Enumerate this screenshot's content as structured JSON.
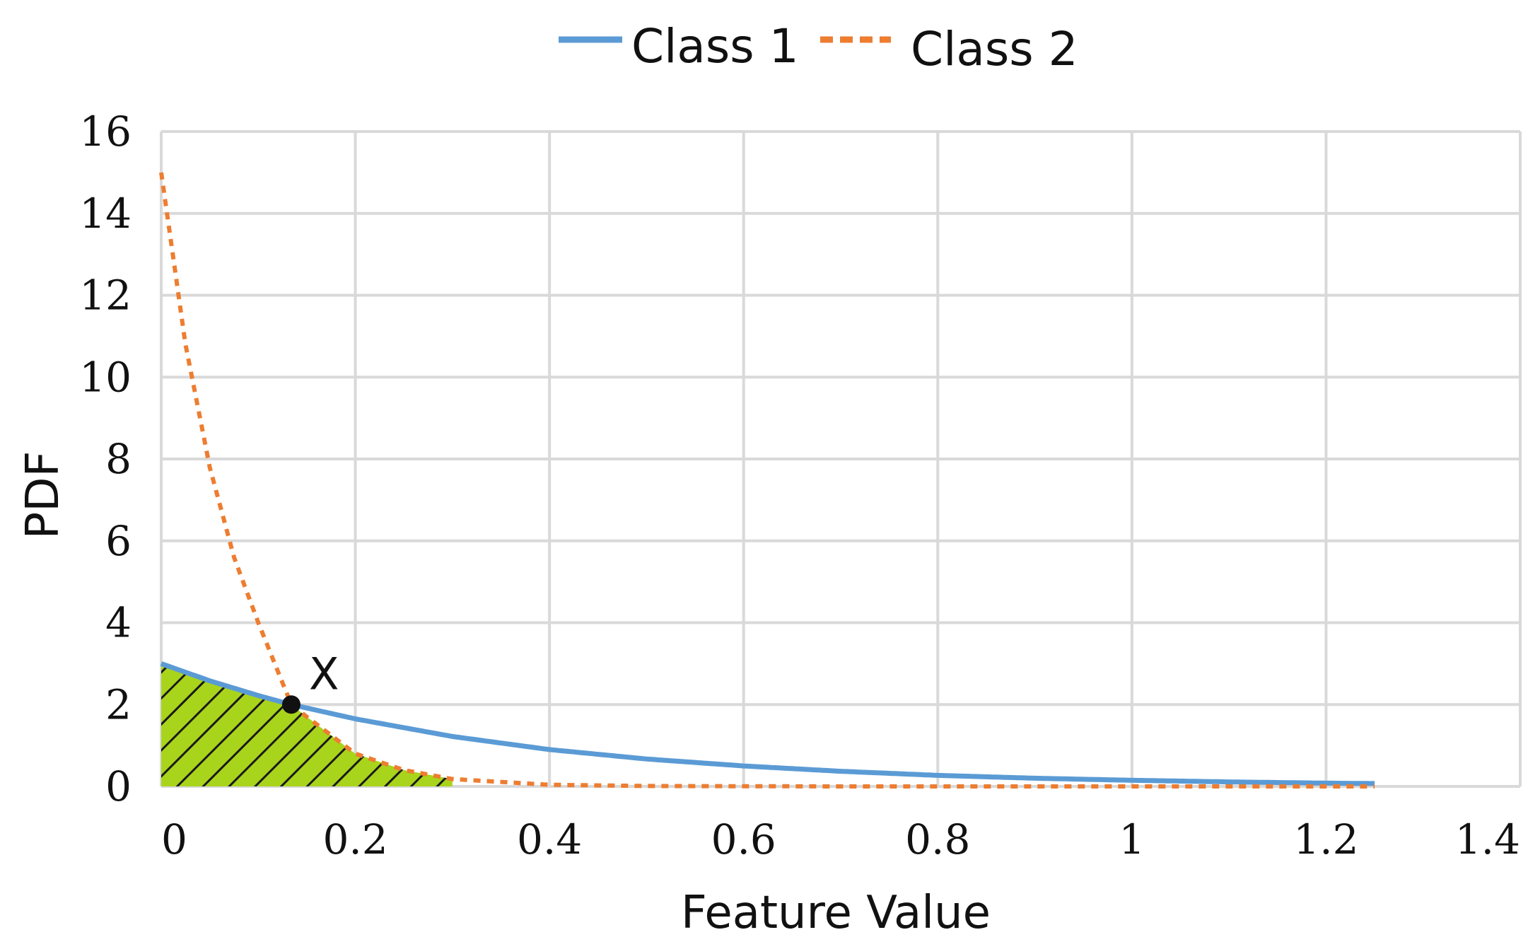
{
  "chart_data": {
    "type": "line",
    "title": "",
    "xlabel": "Feature Value",
    "ylabel": "PDF",
    "xlim": [
      0,
      1.4
    ],
    "ylim": [
      0,
      16
    ],
    "x_ticks": [
      "0",
      "0.2",
      "0.4",
      "0.6",
      "0.8",
      "1",
      "1.2",
      "1.4"
    ],
    "y_ticks": [
      "0",
      "2",
      "4",
      "6",
      "8",
      "10",
      "12",
      "14",
      "16"
    ],
    "grid": true,
    "legend_position": "top-center",
    "series": [
      {
        "name": "Class 1",
        "style": "solid",
        "color": "#5b9bd5",
        "x": [
          0,
          0.05,
          0.1,
          0.134,
          0.2,
          0.3,
          0.4,
          0.5,
          0.6,
          0.7,
          0.8,
          0.9,
          1.0,
          1.1,
          1.2,
          1.25
        ],
        "y": [
          3.0,
          2.58,
          2.22,
          2.0,
          1.65,
          1.22,
          0.9,
          0.67,
          0.5,
          0.37,
          0.27,
          0.2,
          0.15,
          0.11,
          0.08,
          0.07
        ]
      },
      {
        "name": "Class 2",
        "style": "dashed",
        "color": "#ed7d31",
        "x": [
          0,
          0.025,
          0.05,
          0.075,
          0.1,
          0.134,
          0.15,
          0.2,
          0.25,
          0.3,
          0.4,
          0.5,
          0.7,
          1.0,
          1.25
        ],
        "y": [
          15.0,
          10.8,
          7.8,
          5.6,
          4.0,
          2.0,
          1.7,
          0.8,
          0.4,
          0.18,
          0.04,
          0.01,
          0.0,
          0.0,
          0.0
        ]
      }
    ],
    "shaded_region": {
      "x_from": 0,
      "x_to": 0.3,
      "pattern": "diagonal-hatch",
      "color": "#a9d41c"
    },
    "annotations": [
      {
        "text": "X",
        "x": 0.134,
        "y": 2.0
      }
    ]
  }
}
